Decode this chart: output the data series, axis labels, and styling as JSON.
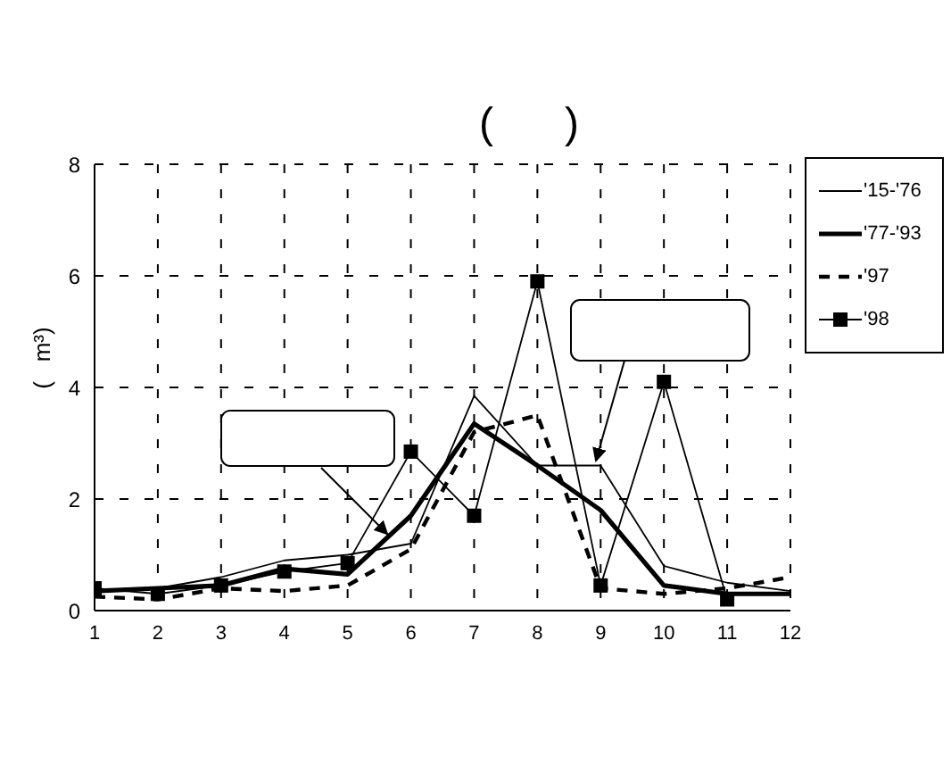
{
  "chart_data": {
    "type": "line",
    "title": "(      )",
    "ylabel": "(   m³)",
    "x": [
      1,
      2,
      3,
      4,
      5,
      6,
      7,
      8,
      9,
      10,
      11,
      12
    ],
    "series": [
      {
        "name": "'15-'76",
        "color": "#000000",
        "line_style": "solid",
        "marker": "none",
        "values": [
          0.35,
          0.4,
          0.6,
          0.9,
          1.0,
          1.2,
          3.85,
          2.6,
          2.6,
          0.8,
          0.5,
          0.35
        ]
      },
      {
        "name": "'77-'93",
        "color": "#000000",
        "line_style": "solid",
        "marker": "none",
        "values": [
          0.35,
          0.4,
          0.45,
          0.75,
          0.65,
          1.7,
          3.35,
          2.6,
          1.8,
          0.45,
          0.3,
          0.3
        ]
      },
      {
        "name": "'97",
        "color": "#000000",
        "line_style": "dashed",
        "marker": "none",
        "values": [
          0.25,
          0.2,
          0.4,
          0.35,
          0.45,
          1.1,
          3.2,
          3.5,
          0.4,
          0.3,
          0.4,
          0.6
        ]
      },
      {
        "name": "'98",
        "color": "#000000",
        "line_style": "solid",
        "marker": "square",
        "values": [
          0.4,
          0.3,
          0.45,
          0.7,
          0.85,
          2.85,
          1.7,
          5.9,
          0.45,
          4.1,
          0.2,
          null
        ]
      }
    ],
    "xlim": [
      1,
      12
    ],
    "xticks": [
      1,
      2,
      3,
      4,
      5,
      6,
      7,
      8,
      9,
      10,
      11,
      12
    ],
    "ylim": [
      0,
      8
    ],
    "yticks": [
      0,
      2,
      4,
      6,
      8
    ],
    "grid": true,
    "legend": "top right"
  }
}
